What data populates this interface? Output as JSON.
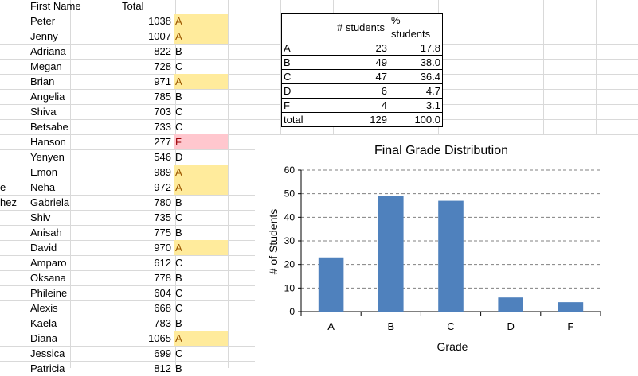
{
  "sheet": {
    "headers": {
      "first_name": "First Name",
      "total": "Total"
    },
    "rows": [
      {
        "last": "",
        "first": "Peter",
        "total": "1038",
        "grade": "A",
        "hl": "a"
      },
      {
        "last": "",
        "first": "Jenny",
        "total": "1007",
        "grade": "A",
        "hl": "a"
      },
      {
        "last": "",
        "first": "Adriana",
        "total": "822",
        "grade": "B",
        "hl": ""
      },
      {
        "last": "",
        "first": "Megan",
        "total": "728",
        "grade": "C",
        "hl": ""
      },
      {
        "last": "",
        "first": "Brian",
        "total": "971",
        "grade": "A",
        "hl": "a"
      },
      {
        "last": "",
        "first": "Angelia",
        "total": "785",
        "grade": "B",
        "hl": ""
      },
      {
        "last": "",
        "first": "Shiva",
        "total": "703",
        "grade": "C",
        "hl": ""
      },
      {
        "last": "",
        "first": "Betsabe",
        "total": "733",
        "grade": "C",
        "hl": ""
      },
      {
        "last": "",
        "first": "Hanson",
        "total": "277",
        "grade": "F",
        "hl": "f"
      },
      {
        "last": "",
        "first": "Yenyen",
        "total": "546",
        "grade": "D",
        "hl": ""
      },
      {
        "last": "",
        "first": "Emon",
        "total": "989",
        "grade": "A",
        "hl": "a"
      },
      {
        "last": "e",
        "first": "Neha",
        "total": "972",
        "grade": "A",
        "hl": "a"
      },
      {
        "last": "hez",
        "first": "Gabriela",
        "total": "780",
        "grade": "B",
        "hl": ""
      },
      {
        "last": "",
        "first": "Shiv",
        "total": "735",
        "grade": "C",
        "hl": ""
      },
      {
        "last": "",
        "first": "Anisah",
        "total": "775",
        "grade": "B",
        "hl": ""
      },
      {
        "last": "",
        "first": "David",
        "total": "970",
        "grade": "A",
        "hl": "a"
      },
      {
        "last": "",
        "first": "Amparo",
        "total": "612",
        "grade": "C",
        "hl": ""
      },
      {
        "last": "",
        "first": "Oksana",
        "total": "778",
        "grade": "B",
        "hl": ""
      },
      {
        "last": "",
        "first": "Phileine",
        "total": "604",
        "grade": "C",
        "hl": ""
      },
      {
        "last": "",
        "first": "Alexis",
        "total": "668",
        "grade": "C",
        "hl": ""
      },
      {
        "last": "",
        "first": "Kaela",
        "total": "783",
        "grade": "B",
        "hl": ""
      },
      {
        "last": "",
        "first": "Diana",
        "total": "1065",
        "grade": "A",
        "hl": "a"
      },
      {
        "last": "",
        "first": "Jessica",
        "total": "699",
        "grade": "C",
        "hl": ""
      },
      {
        "last": "",
        "first": "Patricia",
        "total": "812",
        "grade": "B",
        "hl": ""
      }
    ]
  },
  "summary": {
    "header_count": "# students",
    "header_pct": "% students",
    "rows": [
      {
        "label": "A",
        "count": "23",
        "pct": "17.8"
      },
      {
        "label": "B",
        "count": "49",
        "pct": "38.0"
      },
      {
        "label": "C",
        "count": "47",
        "pct": "36.4"
      },
      {
        "label": "D",
        "count": "6",
        "pct": "4.7"
      },
      {
        "label": "F",
        "count": "4",
        "pct": "3.1"
      },
      {
        "label": "total",
        "count": "129",
        "pct": "100.0"
      }
    ]
  },
  "colors": {
    "highlight_a_fill": "#ffeb9c",
    "highlight_a_text": "#9c5700",
    "highlight_f_fill": "#ffc7ce",
    "highlight_f_text": "#9c0006",
    "bar": "#4f81bd"
  },
  "chart_data": {
    "type": "bar",
    "title": "Final Grade Distribution",
    "xlabel": "Grade",
    "ylabel": "# of Students",
    "categories": [
      "A",
      "B",
      "C",
      "D",
      "F"
    ],
    "values": [
      23,
      49,
      47,
      6,
      4
    ],
    "ylim": [
      0,
      60
    ],
    "yticks": [
      0,
      10,
      20,
      30,
      40,
      50,
      60
    ],
    "grid": "horizontal dashed",
    "legend": "none"
  }
}
